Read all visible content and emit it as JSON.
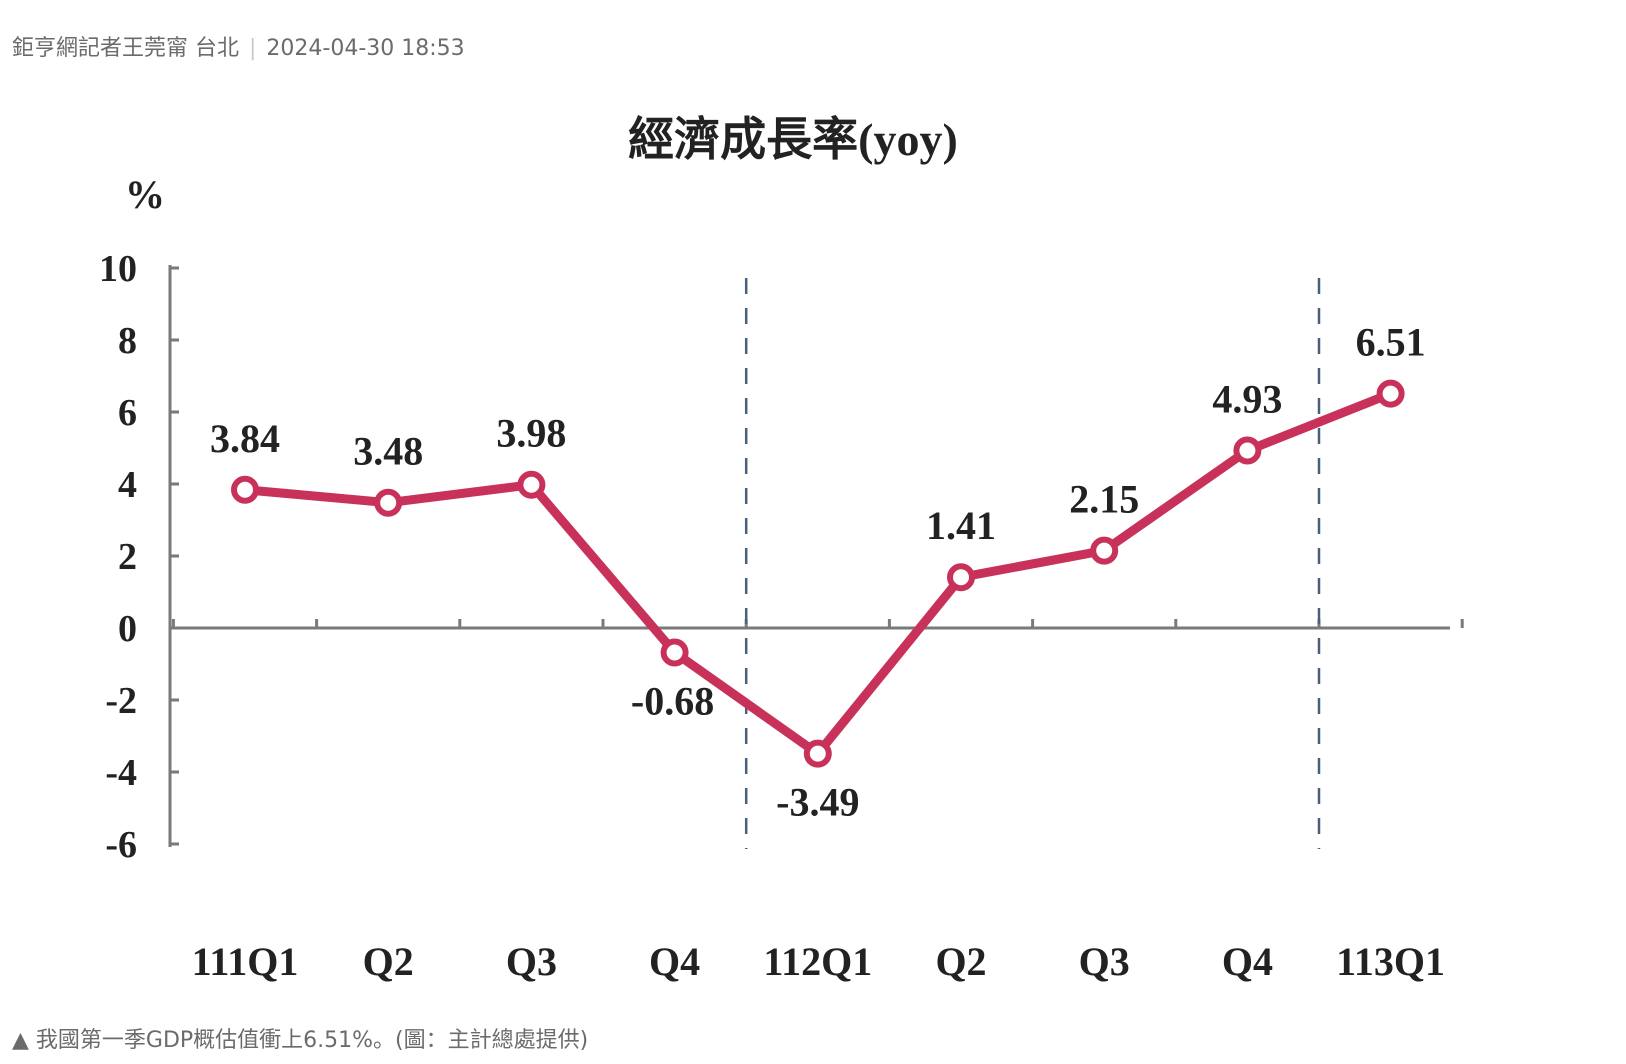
{
  "byline": {
    "author": "鉅亨網記者王莞甯 台北",
    "timestamp": "2024-04-30 18:53"
  },
  "caption": "▲ 我國第一季GDP概估值衝上6.51%。(圖：主計總處提供)",
  "colors": {
    "line": "#c8325a",
    "axis": "#7a7a7a",
    "divider": "#4a5f7a",
    "text": "#222222"
  },
  "chart_data": {
    "type": "line",
    "title": "經濟成長率(yoy)",
    "ylabel": "%",
    "xlabel": "",
    "categories": [
      "111Q1",
      "Q2",
      "Q3",
      "Q4",
      "112Q1",
      "Q2",
      "Q3",
      "Q4",
      "113Q1"
    ],
    "series": [
      {
        "values": [
          3.84,
          3.48,
          3.98,
          -0.68,
          -3.49,
          1.41,
          2.15,
          4.93,
          6.51
        ]
      }
    ],
    "data_labels": [
      "3.84",
      "3.48",
      "3.98",
      "-0.68",
      "-3.49",
      "1.41",
      "2.15",
      "4.93",
      "6.51"
    ],
    "yticks": [
      "10",
      "8",
      "6",
      "4",
      "2",
      "0",
      "-2",
      "-4",
      "-6"
    ],
    "ylim": [
      -6,
      10
    ],
    "grid": false,
    "legend": "none",
    "year_dividers": [
      "112Q1",
      "113Q1"
    ]
  }
}
